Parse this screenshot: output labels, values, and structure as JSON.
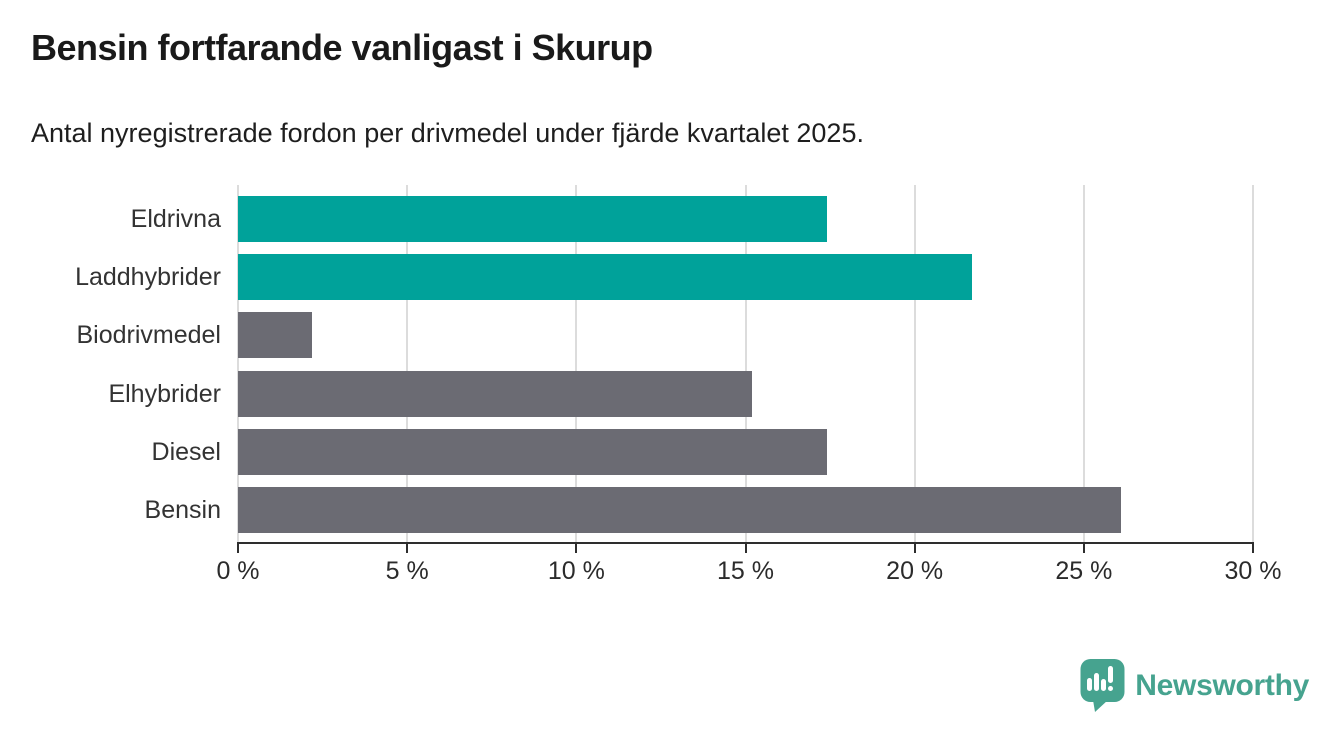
{
  "chart_data": {
    "type": "bar",
    "orientation": "horizontal",
    "title": "Bensin fortfarande vanligast i Skurup",
    "subtitle": "Antal nyregistrerade fordon per drivmedel under fjärde kvartalet 2025.",
    "categories": [
      "Eldrivna",
      "Laddhybrider",
      "Biodrivmedel",
      "Elhybrider",
      "Diesel",
      "Bensin"
    ],
    "values": [
      17.4,
      21.7,
      2.2,
      15.2,
      17.4,
      26.1
    ],
    "unit": "%",
    "bar_colors": [
      "#00a29a",
      "#00a29a",
      "#6b6b73",
      "#6b6b73",
      "#6b6b73",
      "#6b6b73"
    ],
    "accent_color": "#00a29a",
    "neutral_color": "#6b6b73",
    "xlim": [
      0,
      30
    ],
    "x_ticks": [
      0,
      5,
      10,
      15,
      20,
      25,
      30
    ],
    "x_tick_labels": [
      "0 %",
      "5 %",
      "10 %",
      "15 %",
      "20 %",
      "25 %",
      "30 %"
    ],
    "grid": "vertical-only",
    "legend": "none"
  },
  "footer": {
    "brand": "Newsworthy",
    "brand_color": "#46a38f"
  }
}
